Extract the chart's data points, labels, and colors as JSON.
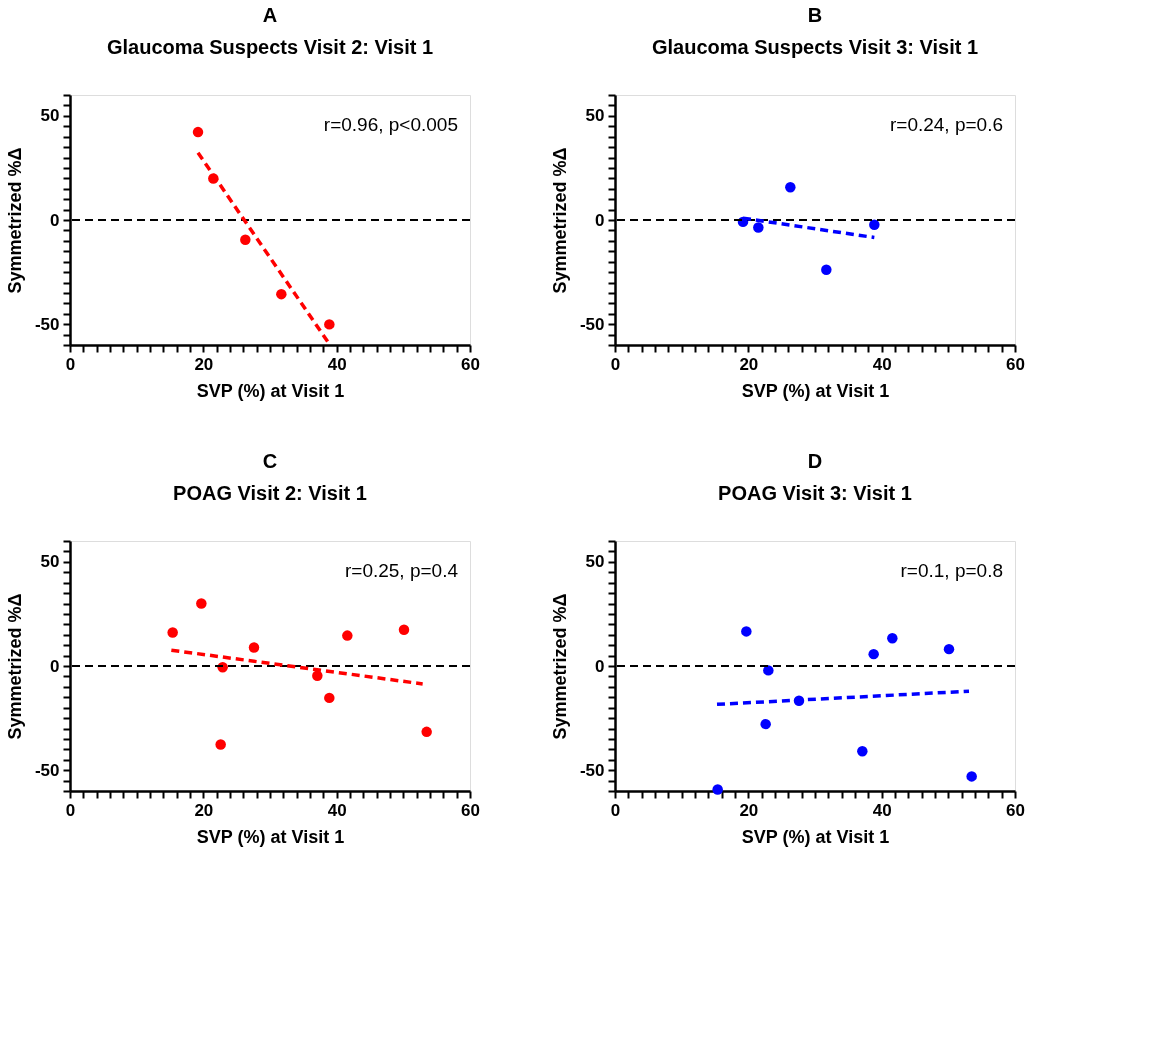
{
  "chart_data": [
    {
      "type": "scatter",
      "title": "A",
      "subtitle": "Glaucoma Suspects Visit 2: Visit 1",
      "xlabel": "SVP (%) at Visit 1",
      "ylabel": "Symmetrized %Δ",
      "xlim": [
        0,
        60
      ],
      "ylim": [
        -60,
        60
      ],
      "xticks": [
        0,
        {
          "value": 2,
          "label": null
        },
        {
          "value": 4,
          "label": null
        },
        {
          "value": 6,
          "label": null
        },
        {
          "value": 8,
          "label": null
        },
        {
          "value": 10,
          "label": null
        },
        {
          "value": 12,
          "label": null
        },
        {
          "value": 14,
          "label": null
        },
        {
          "value": 16,
          "label": null
        },
        {
          "value": 18,
          "label": null
        },
        20,
        {
          "value": 22,
          "label": null
        },
        {
          "value": 24,
          "label": null
        },
        {
          "value": 26,
          "label": null
        },
        {
          "value": 28,
          "label": null
        },
        {
          "value": 30,
          "label": null
        },
        {
          "value": 32,
          "label": null
        },
        {
          "value": 34,
          "label": null
        },
        {
          "value": 36,
          "label": null
        },
        {
          "value": 38,
          "label": null
        },
        40,
        {
          "value": 42,
          "label": null
        },
        {
          "value": 44,
          "label": null
        },
        {
          "value": 46,
          "label": null
        },
        {
          "value": 48,
          "label": null
        },
        {
          "value": 50,
          "label": null
        },
        {
          "value": 52,
          "label": null
        },
        {
          "value": 54,
          "label": null
        },
        {
          "value": 56,
          "label": null
        },
        {
          "value": 58,
          "label": null
        },
        60
      ],
      "yticks": [
        {
          "value": -60,
          "label": null
        },
        {
          "value": -55,
          "label": null
        },
        -50,
        {
          "value": -45,
          "label": null
        },
        {
          "value": -40,
          "label": null
        },
        {
          "value": -35,
          "label": null
        },
        {
          "value": -30,
          "label": null
        },
        {
          "value": -25,
          "label": null
        },
        {
          "value": -20,
          "label": null
        },
        {
          "value": -15,
          "label": null
        },
        {
          "value": -10,
          "label": null
        },
        {
          "value": -5,
          "label": null
        },
        0,
        {
          "value": 5,
          "label": null
        },
        {
          "value": 10,
          "label": null
        },
        {
          "value": 15,
          "label": null
        },
        {
          "value": 20,
          "label": null
        },
        {
          "value": 25,
          "label": null
        },
        {
          "value": 30,
          "label": null
        },
        {
          "value": 35,
          "label": null
        },
        {
          "value": 40,
          "label": null
        },
        {
          "value": 45,
          "label": null
        },
        50,
        {
          "value": 55,
          "label": null
        },
        {
          "value": 60,
          "label": null
        }
      ],
      "grid": false,
      "annotations": [
        "r=0.96, p<0.005"
      ],
      "ref_lines": [
        {
          "axis": "y",
          "value": 0,
          "color": "#000000",
          "line_style": "dashed"
        }
      ],
      "series": [
        {
          "type": "scatter",
          "marker": "circle",
          "color": "#ff0000",
          "x": [
            19.2,
            21.5,
            26.3,
            31.7,
            38.9
          ],
          "values": [
            42.2,
            19.9,
            -9.5,
            -35.6,
            -50.1
          ]
        },
        {
          "type": "line",
          "color": "#ff0000",
          "line_style": "dashed",
          "x": [
            19.2,
            38.9
          ],
          "values": [
            32.3,
            -59.5
          ]
        }
      ]
    },
    {
      "type": "scatter",
      "title": "B",
      "subtitle": "Glaucoma Suspects Visit 3: Visit 1",
      "xlabel": "SVP (%) at Visit 1",
      "ylabel": "Symmetrized %Δ",
      "xlim": [
        0,
        60
      ],
      "ylim": [
        -60,
        60
      ],
      "xticks": [
        0,
        {
          "value": 2,
          "label": null
        },
        {
          "value": 4,
          "label": null
        },
        {
          "value": 6,
          "label": null
        },
        {
          "value": 8,
          "label": null
        },
        {
          "value": 10,
          "label": null
        },
        {
          "value": 12,
          "label": null
        },
        {
          "value": 14,
          "label": null
        },
        {
          "value": 16,
          "label": null
        },
        {
          "value": 18,
          "label": null
        },
        20,
        {
          "value": 22,
          "label": null
        },
        {
          "value": 24,
          "label": null
        },
        {
          "value": 26,
          "label": null
        },
        {
          "value": 28,
          "label": null
        },
        {
          "value": 30,
          "label": null
        },
        {
          "value": 32,
          "label": null
        },
        {
          "value": 34,
          "label": null
        },
        {
          "value": 36,
          "label": null
        },
        {
          "value": 38,
          "label": null
        },
        40,
        {
          "value": 42,
          "label": null
        },
        {
          "value": 44,
          "label": null
        },
        {
          "value": 46,
          "label": null
        },
        {
          "value": 48,
          "label": null
        },
        {
          "value": 50,
          "label": null
        },
        {
          "value": 52,
          "label": null
        },
        {
          "value": 54,
          "label": null
        },
        {
          "value": 56,
          "label": null
        },
        {
          "value": 58,
          "label": null
        },
        60
      ],
      "yticks": [
        {
          "value": -60,
          "label": null
        },
        {
          "value": -55,
          "label": null
        },
        -50,
        {
          "value": -45,
          "label": null
        },
        {
          "value": -40,
          "label": null
        },
        {
          "value": -35,
          "label": null
        },
        {
          "value": -30,
          "label": null
        },
        {
          "value": -25,
          "label": null
        },
        {
          "value": -20,
          "label": null
        },
        {
          "value": -15,
          "label": null
        },
        {
          "value": -10,
          "label": null
        },
        {
          "value": -5,
          "label": null
        },
        0,
        {
          "value": 5,
          "label": null
        },
        {
          "value": 10,
          "label": null
        },
        {
          "value": 15,
          "label": null
        },
        {
          "value": 20,
          "label": null
        },
        {
          "value": 25,
          "label": null
        },
        {
          "value": 30,
          "label": null
        },
        {
          "value": 35,
          "label": null
        },
        {
          "value": 40,
          "label": null
        },
        {
          "value": 45,
          "label": null
        },
        50,
        {
          "value": 55,
          "label": null
        },
        {
          "value": 60,
          "label": null
        }
      ],
      "grid": false,
      "annotations": [
        "r=0.24, p=0.6"
      ],
      "ref_lines": [
        {
          "axis": "y",
          "value": 0,
          "color": "#000000",
          "line_style": "dashed"
        }
      ],
      "series": [
        {
          "type": "scatter",
          "marker": "circle",
          "color": "#0000ff",
          "x": [
            19.2,
            21.5,
            26.3,
            31.7,
            38.9
          ],
          "values": [
            -0.9,
            -3.6,
            15.7,
            -23.9,
            -2.3
          ]
        },
        {
          "type": "line",
          "color": "#0000ff",
          "line_style": "dashed",
          "x": [
            19.2,
            38.9
          ],
          "values": [
            0.9,
            -8.4
          ]
        }
      ]
    },
    {
      "type": "scatter",
      "title": "C",
      "subtitle": "POAG Visit 2: Visit 1",
      "xlabel": "SVP (%) at Visit 1",
      "ylabel": "Symmetrized %Δ",
      "xlim": [
        0,
        60
      ],
      "ylim": [
        -60,
        60
      ],
      "xticks": [
        0,
        {
          "value": 2,
          "label": null
        },
        {
          "value": 4,
          "label": null
        },
        {
          "value": 6,
          "label": null
        },
        {
          "value": 8,
          "label": null
        },
        {
          "value": 10,
          "label": null
        },
        {
          "value": 12,
          "label": null
        },
        {
          "value": 14,
          "label": null
        },
        {
          "value": 16,
          "label": null
        },
        {
          "value": 18,
          "label": null
        },
        20,
        {
          "value": 22,
          "label": null
        },
        {
          "value": 24,
          "label": null
        },
        {
          "value": 26,
          "label": null
        },
        {
          "value": 28,
          "label": null
        },
        {
          "value": 30,
          "label": null
        },
        {
          "value": 32,
          "label": null
        },
        {
          "value": 34,
          "label": null
        },
        {
          "value": 36,
          "label": null
        },
        {
          "value": 38,
          "label": null
        },
        40,
        {
          "value": 42,
          "label": null
        },
        {
          "value": 44,
          "label": null
        },
        {
          "value": 46,
          "label": null
        },
        {
          "value": 48,
          "label": null
        },
        {
          "value": 50,
          "label": null
        },
        {
          "value": 52,
          "label": null
        },
        {
          "value": 54,
          "label": null
        },
        {
          "value": 56,
          "label": null
        },
        {
          "value": 58,
          "label": null
        },
        60
      ],
      "yticks": [
        {
          "value": -60,
          "label": null
        },
        {
          "value": -55,
          "label": null
        },
        -50,
        {
          "value": -45,
          "label": null
        },
        {
          "value": -40,
          "label": null
        },
        {
          "value": -35,
          "label": null
        },
        {
          "value": -30,
          "label": null
        },
        {
          "value": -25,
          "label": null
        },
        {
          "value": -20,
          "label": null
        },
        {
          "value": -15,
          "label": null
        },
        {
          "value": -10,
          "label": null
        },
        {
          "value": -5,
          "label": null
        },
        0,
        {
          "value": 5,
          "label": null
        },
        {
          "value": 10,
          "label": null
        },
        {
          "value": 15,
          "label": null
        },
        {
          "value": 20,
          "label": null
        },
        {
          "value": 25,
          "label": null
        },
        {
          "value": 30,
          "label": null
        },
        {
          "value": 35,
          "label": null
        },
        {
          "value": 40,
          "label": null
        },
        {
          "value": 45,
          "label": null
        },
        50,
        {
          "value": 55,
          "label": null
        },
        {
          "value": 60,
          "label": null
        }
      ],
      "grid": false,
      "annotations": [
        "r=0.25, p=0.4"
      ],
      "ref_lines": [
        {
          "axis": "y",
          "value": 0,
          "color": "#000000",
          "line_style": "dashed"
        }
      ],
      "series": [
        {
          "type": "scatter",
          "marker": "circle",
          "color": "#ff0000",
          "x": [
            15.4,
            19.7,
            22.9,
            22.6,
            27.6,
            37.1,
            38.9,
            41.6,
            50.1,
            53.5
          ],
          "values": [
            16.1,
            30.0,
            -0.6,
            -37.7,
            8.9,
            -4.7,
            -15.3,
            14.6,
            17.4,
            -31.6
          ]
        },
        {
          "type": "line",
          "color": "#ff0000",
          "line_style": "dashed",
          "x": [
            15.2,
            52.9
          ],
          "values": [
            7.6,
            -8.6
          ]
        }
      ]
    },
    {
      "type": "scatter",
      "title": "D",
      "subtitle": "POAG Visit 3: Visit 1",
      "xlabel": "SVP (%) at Visit 1",
      "ylabel": "Symmetrized %Δ",
      "xlim": [
        0,
        60
      ],
      "ylim": [
        -60,
        60
      ],
      "xticks": [
        0,
        {
          "value": 2,
          "label": null
        },
        {
          "value": 4,
          "label": null
        },
        {
          "value": 6,
          "label": null
        },
        {
          "value": 8,
          "label": null
        },
        {
          "value": 10,
          "label": null
        },
        {
          "value": 12,
          "label": null
        },
        {
          "value": 14,
          "label": null
        },
        {
          "value": 16,
          "label": null
        },
        {
          "value": 18,
          "label": null
        },
        20,
        {
          "value": 22,
          "label": null
        },
        {
          "value": 24,
          "label": null
        },
        {
          "value": 26,
          "label": null
        },
        {
          "value": 28,
          "label": null
        },
        {
          "value": 30,
          "label": null
        },
        {
          "value": 32,
          "label": null
        },
        {
          "value": 34,
          "label": null
        },
        {
          "value": 36,
          "label": null
        },
        {
          "value": 38,
          "label": null
        },
        40,
        {
          "value": 42,
          "label": null
        },
        {
          "value": 44,
          "label": null
        },
        {
          "value": 46,
          "label": null
        },
        {
          "value": 48,
          "label": null
        },
        {
          "value": 50,
          "label": null
        },
        {
          "value": 52,
          "label": null
        },
        {
          "value": 54,
          "label": null
        },
        {
          "value": 56,
          "label": null
        },
        {
          "value": 58,
          "label": null
        },
        60
      ],
      "yticks": [
        {
          "value": -60,
          "label": null
        },
        {
          "value": -55,
          "label": null
        },
        -50,
        {
          "value": -45,
          "label": null
        },
        {
          "value": -40,
          "label": null
        },
        {
          "value": -35,
          "label": null
        },
        {
          "value": -30,
          "label": null
        },
        {
          "value": -25,
          "label": null
        },
        {
          "value": -20,
          "label": null
        },
        {
          "value": -15,
          "label": null
        },
        {
          "value": -10,
          "label": null
        },
        {
          "value": -5,
          "label": null
        },
        0,
        {
          "value": 5,
          "label": null
        },
        {
          "value": 10,
          "label": null
        },
        {
          "value": 15,
          "label": null
        },
        {
          "value": 20,
          "label": null
        },
        {
          "value": 25,
          "label": null
        },
        {
          "value": 30,
          "label": null
        },
        {
          "value": 35,
          "label": null
        },
        {
          "value": 40,
          "label": null
        },
        {
          "value": 45,
          "label": null
        },
        50,
        {
          "value": 55,
          "label": null
        },
        {
          "value": 60,
          "label": null
        }
      ],
      "grid": false,
      "annotations": [
        "r=0.1, p=0.8"
      ],
      "ref_lines": [
        {
          "axis": "y",
          "value": 0,
          "color": "#000000",
          "line_style": "dashed"
        }
      ],
      "series": [
        {
          "type": "scatter",
          "marker": "circle",
          "color": "#0000ff",
          "x": [
            15.4,
            19.7,
            23.0,
            22.6,
            27.6,
            37.1,
            38.8,
            41.6,
            50.1,
            53.5
          ],
          "values": [
            -59.3,
            16.6,
            -2.1,
            -27.9,
            -16.7,
            -40.9,
            5.7,
            13.3,
            8.1,
            -53.0
          ]
        },
        {
          "type": "line",
          "color": "#0000ff",
          "line_style": "dashed",
          "x": [
            15.3,
            53.1
          ],
          "values": [
            -18.4,
            -12.1
          ]
        }
      ]
    }
  ]
}
